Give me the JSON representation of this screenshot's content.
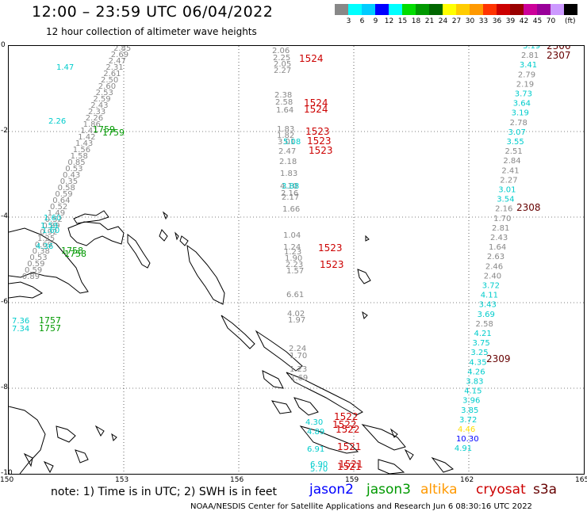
{
  "title": "12:00 – 23:59 UTC 06/04/2022",
  "subtitle": "12 hour collection of altimeter wave heights",
  "scale": {
    "colors": [
      "#888888",
      "#00ffff",
      "#00ccff",
      "#0000ff",
      "#00ffff",
      "#00dd00",
      "#009900",
      "#006600",
      "#ffff00",
      "#ffcc00",
      "#ff9900",
      "#ff3300",
      "#cc0000",
      "#990000",
      "#cc0099",
      "#990099",
      "#cc99ff",
      "#000000"
    ],
    "labels": [
      "3",
      "6",
      "9",
      "12",
      "15",
      "18",
      "21",
      "24",
      "27",
      "30",
      "33",
      "36",
      "39",
      "42",
      "45",
      "70"
    ],
    "unit": "(ft)"
  },
  "map": {
    "y_labels": [
      "0",
      "-2",
      "-4",
      "-6",
      "-8",
      "-10"
    ],
    "x_labels": [
      "150",
      "153",
      "156",
      "159",
      "162",
      "165"
    ]
  },
  "note": "note:  1) Time is in UTC;  2) SWH is in feet",
  "satellites": [
    {
      "name": "jason2",
      "color": "#0000ff"
    },
    {
      "name": "jason3",
      "color": "#009900"
    },
    {
      "name": "altika",
      "color": "#ff9900"
    },
    {
      "name": "cryosat",
      "color": "#cc0000"
    },
    {
      "name": "s3a",
      "color": "#660000"
    }
  ],
  "credit": "NOAA/NESDIS Center for Satellite Applications and Research    Jun  6 08:30:16 UTC 2022",
  "track_left": {
    "color": "#888888",
    "values": [
      "2.85",
      "2.69",
      "2.47",
      "2.31",
      "2.61",
      "2.50",
      "2.60",
      "2.53",
      "2.59",
      "2.43",
      "2.33",
      "2.26",
      "1.86",
      "1.41",
      "1.42",
      "1.43",
      "1.56",
      "1.58",
      "0.85",
      "0.53",
      "0.43",
      "0.35",
      "0.58",
      "0.59",
      "0.64",
      "0.52",
      "1.49",
      "0.52",
      "0.89",
      "0.92",
      "1.25",
      "0.69",
      "0.38",
      "0.53",
      "0.59",
      "0.59",
      "0.89"
    ],
    "cyan_values": [
      "1.47",
      "2.26",
      "1.60",
      "4.36",
      "1.60",
      "1.59"
    ],
    "times": [
      {
        "label": "1759",
        "color": "#009900"
      },
      {
        "label": "1759",
        "color": "#009900"
      },
      {
        "label": "1758",
        "color": "#009900"
      },
      {
        "label": "1758",
        "color": "#009900"
      }
    ]
  },
  "track_bottom_left": {
    "values": [
      "7.36",
      "7.34"
    ],
    "times": [
      "1757",
      "1757"
    ]
  },
  "track_mid": {
    "values": [
      "2.06",
      "2.25",
      "2.05",
      "2.27",
      "2.38",
      "2.58",
      "1.64",
      "1.83",
      "1.82",
      "3.01",
      "2.47",
      "2.18",
      "1.83",
      "4.10",
      "2.16",
      "2.17",
      "1.66",
      "1.04",
      "1.24",
      "1.23",
      "1.90",
      "2.23",
      "1.57",
      "6.61",
      "4.02",
      "1.97",
      "2.24",
      "1.70",
      "1.23",
      "1.69"
    ],
    "times": [
      {
        "label": "1524",
        "color": "#cc0000"
      },
      {
        "label": "1524",
        "color": "#cc0000"
      },
      {
        "label": "1524",
        "color": "#cc0000"
      },
      {
        "label": "1523",
        "color": "#cc0000"
      },
      {
        "label": "1523",
        "color": "#cc0000"
      },
      {
        "label": "1523",
        "color": "#cc0000"
      },
      {
        "label": "1523",
        "color": "#cc0000"
      },
      {
        "label": "1523",
        "color": "#cc0000"
      },
      {
        "label": "1522",
        "color": "#cc0000"
      },
      {
        "label": "1522",
        "color": "#cc0000"
      },
      {
        "label": "1522",
        "color": "#cc0000"
      },
      {
        "label": "1521",
        "color": "#cc0000"
      },
      {
        "label": "1521",
        "color": "#cc0000"
      },
      {
        "label": "1521",
        "color": "#cc0000"
      }
    ],
    "cyan_values": [
      "3.88",
      "5.08",
      "4.30",
      "4.89",
      "6.91",
      "6.90",
      "5.70"
    ]
  },
  "track_right": {
    "values": [
      "3.19",
      "2.81",
      "3.41",
      "2.79",
      "2.19",
      "3.73",
      "3.64",
      "3.19",
      "2.78",
      "3.07",
      "3.55",
      "2.51",
      "2.84",
      "2.41",
      "2.27",
      "3.01",
      "3.54",
      "2.16",
      "1.70",
      "2.81",
      "2.43",
      "1.64",
      "2.63",
      "2.46",
      "2.40",
      "3.72",
      "4.11",
      "3.43",
      "3.69",
      "2.58",
      "4.21",
      "3.75",
      "3.25",
      "4.35",
      "4.26",
      "3.83",
      "4.15",
      "3.96",
      "3.85",
      "3.72",
      "4.46",
      "10.30",
      "4.91"
    ],
    "times": [
      {
        "label": "2306",
        "color": "#660000"
      },
      {
        "label": "2307",
        "color": "#660000"
      },
      {
        "label": "2308",
        "color": "#660000"
      },
      {
        "label": "2309",
        "color": "#660000"
      }
    ]
  }
}
